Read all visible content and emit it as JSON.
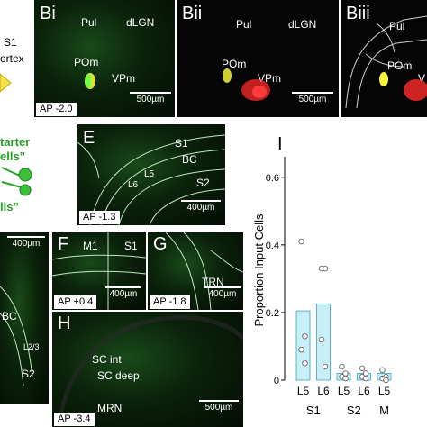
{
  "left_fragments": {
    "s1": "S1",
    "cortex": "ortex",
    "starter": "tarter",
    "cells": "ells”",
    "input": "lls”",
    "open_quote": "“"
  },
  "panels": {
    "bi": {
      "label": "Bi",
      "regions": [
        "Pul",
        "dLGN",
        "POm",
        "VPm"
      ],
      "ap": "AP -2.0",
      "scale": "500µm"
    },
    "bii": {
      "label": "Bii",
      "regions": [
        "Pul",
        "dLGN",
        "POm",
        "VPm"
      ],
      "scale": "500µm"
    },
    "biii": {
      "label": "Biii",
      "regions": [
        "Pul",
        "POm",
        "V"
      ]
    },
    "e": {
      "label": "E",
      "regions": [
        "S1",
        "BC",
        "L5",
        "L6",
        "S2"
      ],
      "ap": "AP -1.3",
      "scale": "400µm"
    },
    "d": {
      "regions": [
        "BC",
        "L2/3",
        "S2"
      ],
      "scale": "400µm"
    },
    "f": {
      "label": "F",
      "regions": [
        "M1",
        "S1"
      ],
      "ap": "AP +0.4",
      "scale": "400µm"
    },
    "g": {
      "label": "G",
      "regions": [
        "TRN"
      ],
      "ap": "AP -1.8",
      "scale": "400µm"
    },
    "h": {
      "label": "H",
      "regions": [
        "SC int",
        "SC deep",
        "MRN"
      ],
      "ap": "AP -3.4",
      "scale": "500µm"
    }
  },
  "colors": {
    "bar_fill": "#c8eef8",
    "bar_stroke": "#3aa0c0",
    "signal_green": "#3cff3c",
    "signal_red": "#ff2a2a",
    "signal_yellow": "#f4f43a"
  },
  "chart_data": {
    "type": "bar",
    "panel_label": "I",
    "ylabel": "Proportion Input Cells",
    "ylim": [
      0,
      0.65
    ],
    "yticks": [
      0,
      0.2,
      0.4,
      0.6
    ],
    "ytick_labels": [
      "0",
      "0.2",
      "0.4",
      "0.6"
    ],
    "categories": [
      "L5",
      "L6",
      "L5",
      "L6",
      "L5"
    ],
    "groups": [
      {
        "label": "S1",
        "span": [
          0,
          1
        ]
      },
      {
        "label": "S2",
        "span": [
          2,
          3
        ]
      },
      {
        "label": "M",
        "span": [
          4,
          4
        ]
      }
    ],
    "values": [
      0.205,
      0.225,
      0.02,
      0.02,
      0.02
    ],
    "points": [
      [
        0.41,
        0.13,
        0.09,
        0.05
      ],
      [
        0.33,
        0.33,
        0.12,
        0.04
      ],
      [
        0.04,
        0.02,
        0.01,
        0.005
      ],
      [
        0.035,
        0.02,
        0.01,
        0.005
      ],
      [
        0.03,
        0.01,
        0.005,
        0.0
      ]
    ]
  }
}
